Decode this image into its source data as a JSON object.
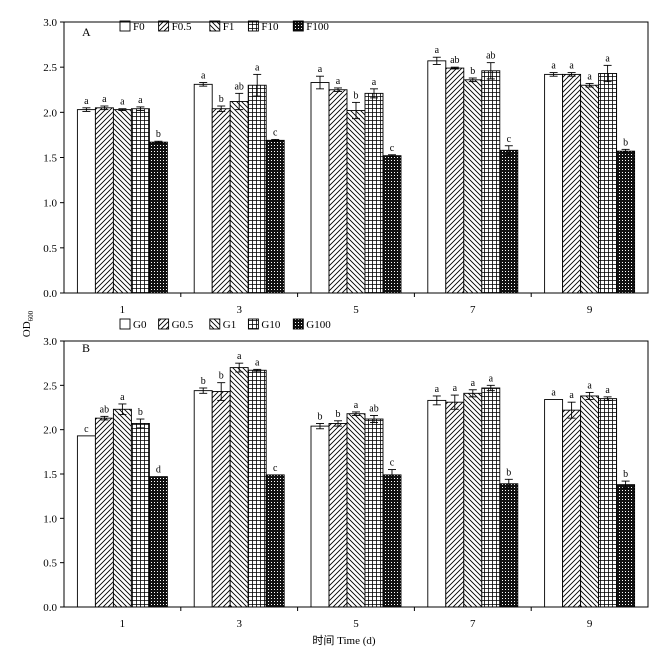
{
  "chart_data": [
    {
      "type": "bar",
      "panel_label": "A",
      "categories": [
        "1",
        "3",
        "5",
        "7",
        "9"
      ],
      "ylim": [
        0,
        3.0
      ],
      "yticks": [
        "0.0",
        "0.5",
        "1.0",
        "1.5",
        "2.0",
        "2.5",
        "3.0"
      ],
      "grid": false,
      "legend_position": "top",
      "series": [
        {
          "name": "F0",
          "pattern": "white",
          "values": [
            2.03,
            2.31,
            2.33,
            2.57,
            2.42
          ],
          "errors": [
            0.02,
            0.02,
            0.07,
            0.04,
            0.02
          ],
          "letters": [
            "a",
            "a",
            "a",
            "a",
            "a"
          ]
        },
        {
          "name": "F0.5",
          "pattern": "diag-right",
          "values": [
            2.05,
            2.04,
            2.25,
            2.49,
            2.42
          ],
          "errors": [
            0.02,
            0.03,
            0.02,
            0.01,
            0.02
          ],
          "letters": [
            "a",
            "b",
            "a",
            "ab",
            "a"
          ]
        },
        {
          "name": "F1",
          "pattern": "diag-left",
          "values": [
            2.03,
            2.12,
            2.02,
            2.36,
            2.3
          ],
          "errors": [
            0.01,
            0.09,
            0.09,
            0.02,
            0.02
          ],
          "letters": [
            "a",
            "ab",
            "b",
            "b",
            "a"
          ]
        },
        {
          "name": "F10",
          "pattern": "grid",
          "values": [
            2.04,
            2.3,
            2.21,
            2.46,
            2.43
          ],
          "errors": [
            0.02,
            0.12,
            0.05,
            0.09,
            0.09
          ],
          "letters": [
            "a",
            "a",
            "a",
            "ab",
            "a"
          ]
        },
        {
          "name": "F100",
          "pattern": "dots",
          "values": [
            1.67,
            1.69,
            1.52,
            1.58,
            1.57
          ],
          "errors": [
            0.01,
            0.01,
            0.01,
            0.05,
            0.02
          ],
          "letters": [
            "b",
            "c",
            "c",
            "c",
            "b"
          ]
        }
      ]
    },
    {
      "type": "bar",
      "panel_label": "B",
      "categories": [
        "1",
        "3",
        "5",
        "7",
        "9"
      ],
      "ylim": [
        0,
        3.0
      ],
      "yticks": [
        "0.0",
        "0.5",
        "1.0",
        "1.5",
        "2.0",
        "2.5",
        "3.0"
      ],
      "grid": false,
      "legend_position": "top",
      "series": [
        {
          "name": "G0",
          "pattern": "white",
          "values": [
            1.93,
            2.44,
            2.04,
            2.33,
            2.34
          ],
          "errors": [
            0.0,
            0.03,
            0.03,
            0.05,
            0.0
          ],
          "letters": [
            "c",
            "b",
            "b",
            "a",
            "a"
          ]
        },
        {
          "name": "G0.5",
          "pattern": "diag-right",
          "values": [
            2.13,
            2.43,
            2.07,
            2.31,
            2.22
          ],
          "errors": [
            0.02,
            0.1,
            0.03,
            0.08,
            0.09
          ],
          "letters": [
            "ab",
            "b",
            "b",
            "a",
            "a"
          ]
        },
        {
          "name": "G1",
          "pattern": "diag-left",
          "values": [
            2.23,
            2.7,
            2.18,
            2.41,
            2.38
          ],
          "errors": [
            0.06,
            0.05,
            0.02,
            0.04,
            0.04
          ],
          "letters": [
            "a",
            "a",
            "a",
            "a",
            "a"
          ]
        },
        {
          "name": "G10",
          "pattern": "grid",
          "values": [
            2.07,
            2.67,
            2.12,
            2.47,
            2.35
          ],
          "errors": [
            0.05,
            0.01,
            0.04,
            0.03,
            0.02
          ],
          "letters": [
            "b",
            "a",
            "ab",
            "a",
            "a"
          ]
        },
        {
          "name": "G100",
          "pattern": "dots",
          "values": [
            1.47,
            1.49,
            1.49,
            1.39,
            1.38
          ],
          "errors": [
            0.0,
            0.0,
            0.06,
            0.05,
            0.04
          ],
          "letters": [
            "d",
            "c",
            "c",
            "b",
            "b"
          ]
        }
      ]
    }
  ],
  "axes": {
    "ylabel_main": "OD",
    "ylabel_sub": "600",
    "xlabel": "时间 Time (d)"
  },
  "colors": {
    "ink": "#000000",
    "bar_fill": "#ffffff",
    "background": "#ffffff"
  }
}
